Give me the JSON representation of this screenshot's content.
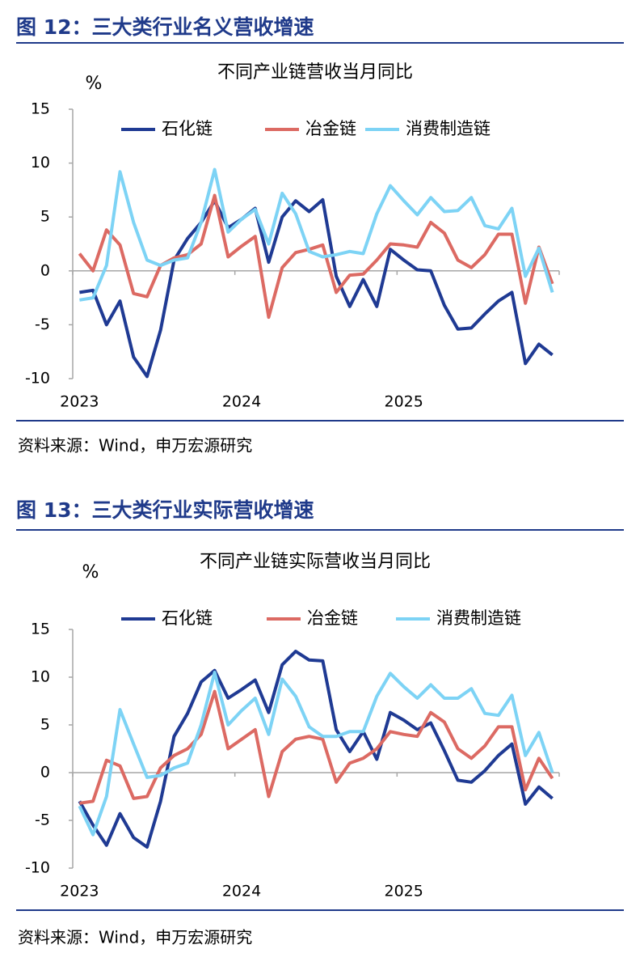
{
  "chart_data": [
    {
      "type": "line",
      "heading": "图 12：三大类行业名义营收增速",
      "title": "不同产业链营收当月同比",
      "y_label": "%",
      "source": "资料来源：Wind，申万宏源研究",
      "legend": "top",
      "categories": [
        "2023",
        null,
        null,
        null,
        null,
        null,
        null,
        null,
        null,
        null,
        null,
        null,
        "2024",
        null,
        null,
        null,
        null,
        null,
        null,
        null,
        null,
        null,
        null,
        null,
        "2025",
        null,
        null,
        null,
        null,
        null,
        null,
        null,
        null,
        null,
        null,
        null
      ],
      "ylim": [
        -10,
        15
      ],
      "yticks": [
        -10,
        -5,
        0,
        5,
        10,
        15
      ],
      "series": [
        {
          "name": "石化链",
          "color": "#1f3a93",
          "values": [
            -2.0,
            -1.8,
            -5.0,
            -2.8,
            -8.0,
            -9.8,
            -5.5,
            1.0,
            3.0,
            4.5,
            6.5,
            4.0,
            4.8,
            5.8,
            0.8,
            5.0,
            6.5,
            5.5,
            6.6,
            -0.5,
            -3.3,
            -0.8,
            -3.3,
            2.0,
            1.0,
            0.1,
            0.0,
            -3.2,
            -5.4,
            -5.3,
            -4.0,
            -2.8,
            -2.0,
            -8.6,
            -6.8,
            -7.8
          ]
        },
        {
          "name": "冶金链",
          "color": "#dc6a63",
          "values": [
            1.6,
            0.0,
            3.8,
            2.4,
            -2.1,
            -2.4,
            0.5,
            1.2,
            1.5,
            2.5,
            7.0,
            1.3,
            2.3,
            3.2,
            -4.3,
            0.3,
            1.7,
            2.0,
            2.4,
            -2.0,
            -0.4,
            -0.3,
            1.0,
            2.5,
            2.4,
            2.2,
            4.5,
            3.5,
            1.0,
            0.3,
            1.5,
            3.4,
            3.4,
            -3.0,
            2.2,
            -1.2
          ]
        },
        {
          "name": "消费制造链",
          "color": "#7dd3f5",
          "values": [
            -2.7,
            -2.5,
            0.5,
            9.2,
            4.5,
            1.0,
            0.5,
            1.0,
            1.2,
            4.5,
            9.4,
            3.6,
            4.8,
            5.7,
            2.5,
            7.2,
            5.3,
            1.8,
            1.3,
            1.5,
            1.8,
            1.6,
            5.3,
            7.9,
            6.5,
            5.2,
            6.8,
            5.5,
            5.6,
            6.8,
            4.2,
            3.9,
            5.8,
            -0.5,
            2.1,
            -2.0
          ]
        }
      ]
    },
    {
      "type": "line",
      "heading": "图 13：三大类行业实际营收增速",
      "title": "不同产业链实际营收当月同比",
      "y_label": "%",
      "source": "资料来源：Wind，申万宏源研究",
      "legend": "top",
      "categories": [
        "2023",
        null,
        null,
        null,
        null,
        null,
        null,
        null,
        null,
        null,
        null,
        null,
        "2024",
        null,
        null,
        null,
        null,
        null,
        null,
        null,
        null,
        null,
        null,
        null,
        "2025",
        null,
        null,
        null,
        null,
        null,
        null,
        null,
        null,
        null,
        null,
        null
      ],
      "ylim": [
        -10,
        15
      ],
      "yticks": [
        -10,
        -5,
        0,
        5,
        10,
        15
      ],
      "series": [
        {
          "name": "石化链",
          "color": "#1f3a93",
          "values": [
            -3.0,
            -5.5,
            -7.6,
            -4.3,
            -6.8,
            -7.8,
            -3.0,
            3.8,
            6.2,
            9.5,
            10.7,
            7.8,
            8.7,
            9.7,
            6.3,
            11.3,
            12.7,
            11.8,
            11.7,
            4.5,
            2.2,
            4.3,
            1.4,
            6.3,
            5.5,
            4.5,
            5.2,
            2.3,
            -0.8,
            -1.0,
            0.2,
            1.8,
            3.0,
            -3.3,
            -1.5,
            -2.7
          ]
        },
        {
          "name": "冶金链",
          "color": "#dc6a63",
          "values": [
            -3.2,
            -3.0,
            1.3,
            0.7,
            -2.7,
            -2.5,
            0.5,
            1.8,
            2.5,
            4.0,
            8.5,
            2.5,
            3.5,
            4.5,
            -2.5,
            2.2,
            3.5,
            3.8,
            3.5,
            -1.0,
            1.0,
            1.5,
            2.5,
            4.3,
            4.0,
            3.8,
            6.3,
            5.3,
            2.5,
            1.5,
            2.8,
            4.8,
            4.8,
            -1.8,
            1.5,
            -0.6
          ]
        },
        {
          "name": "消费制造链",
          "color": "#7dd3f5",
          "values": [
            -3.5,
            -6.5,
            -2.5,
            6.6,
            3.0,
            -0.5,
            -0.3,
            0.5,
            1.0,
            5.0,
            10.5,
            5.0,
            6.5,
            7.8,
            4.0,
            9.8,
            8.0,
            4.8,
            3.8,
            3.8,
            4.3,
            4.3,
            8.0,
            10.4,
            9.0,
            7.8,
            9.2,
            7.8,
            7.8,
            8.8,
            6.2,
            6.0,
            8.1,
            1.8,
            4.2,
            0.0
          ]
        }
      ]
    }
  ]
}
